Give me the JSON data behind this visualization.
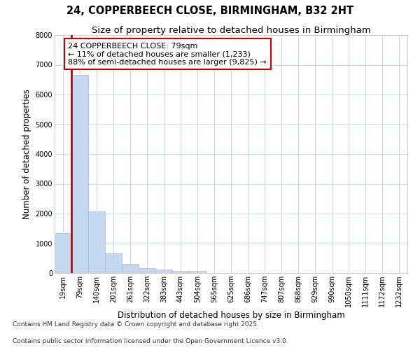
{
  "title_line1": "24, COPPERBEECH CLOSE, BIRMINGHAM, B32 2HT",
  "title_line2": "Size of property relative to detached houses in Birmingham",
  "xlabel": "Distribution of detached houses by size in Birmingham",
  "ylabel": "Number of detached properties",
  "categories": [
    "19sqm",
    "79sqm",
    "140sqm",
    "201sqm",
    "261sqm",
    "322sqm",
    "383sqm",
    "443sqm",
    "504sqm",
    "565sqm",
    "625sqm",
    "686sqm",
    "747sqm",
    "807sqm",
    "868sqm",
    "929sqm",
    "990sqm",
    "1050sqm",
    "1111sqm",
    "1172sqm",
    "1232sqm"
  ],
  "values": [
    1340,
    6650,
    2080,
    650,
    305,
    155,
    110,
    65,
    65,
    0,
    0,
    0,
    0,
    0,
    0,
    0,
    0,
    0,
    0,
    0,
    0
  ],
  "highlight_index": 1,
  "bar_color": "#c5d8f0",
  "highlight_color": "#cc0000",
  "bar_edge_color": "#a0bfdf",
  "ylim": [
    0,
    8000
  ],
  "yticks": [
    0,
    1000,
    2000,
    3000,
    4000,
    5000,
    6000,
    7000,
    8000
  ],
  "annotation_title": "24 COPPERBEECH CLOSE: 79sqm",
  "annotation_line2": "← 11% of detached houses are smaller (1,233)",
  "annotation_line3": "88% of semi-detached houses are larger (9,825) →",
  "footnote1": "Contains HM Land Registry data © Crown copyright and database right 2025.",
  "footnote2": "Contains public sector information licensed under the Open Government Licence v3.0.",
  "bg_color": "#ffffff",
  "plot_bg_color": "#ffffff",
  "grid_color": "#d0dcec",
  "title_fontsize": 10.5,
  "subtitle_fontsize": 9.5,
  "tick_fontsize": 7,
  "label_fontsize": 8.5,
  "annotation_fontsize": 8,
  "footnote_fontsize": 6.5
}
